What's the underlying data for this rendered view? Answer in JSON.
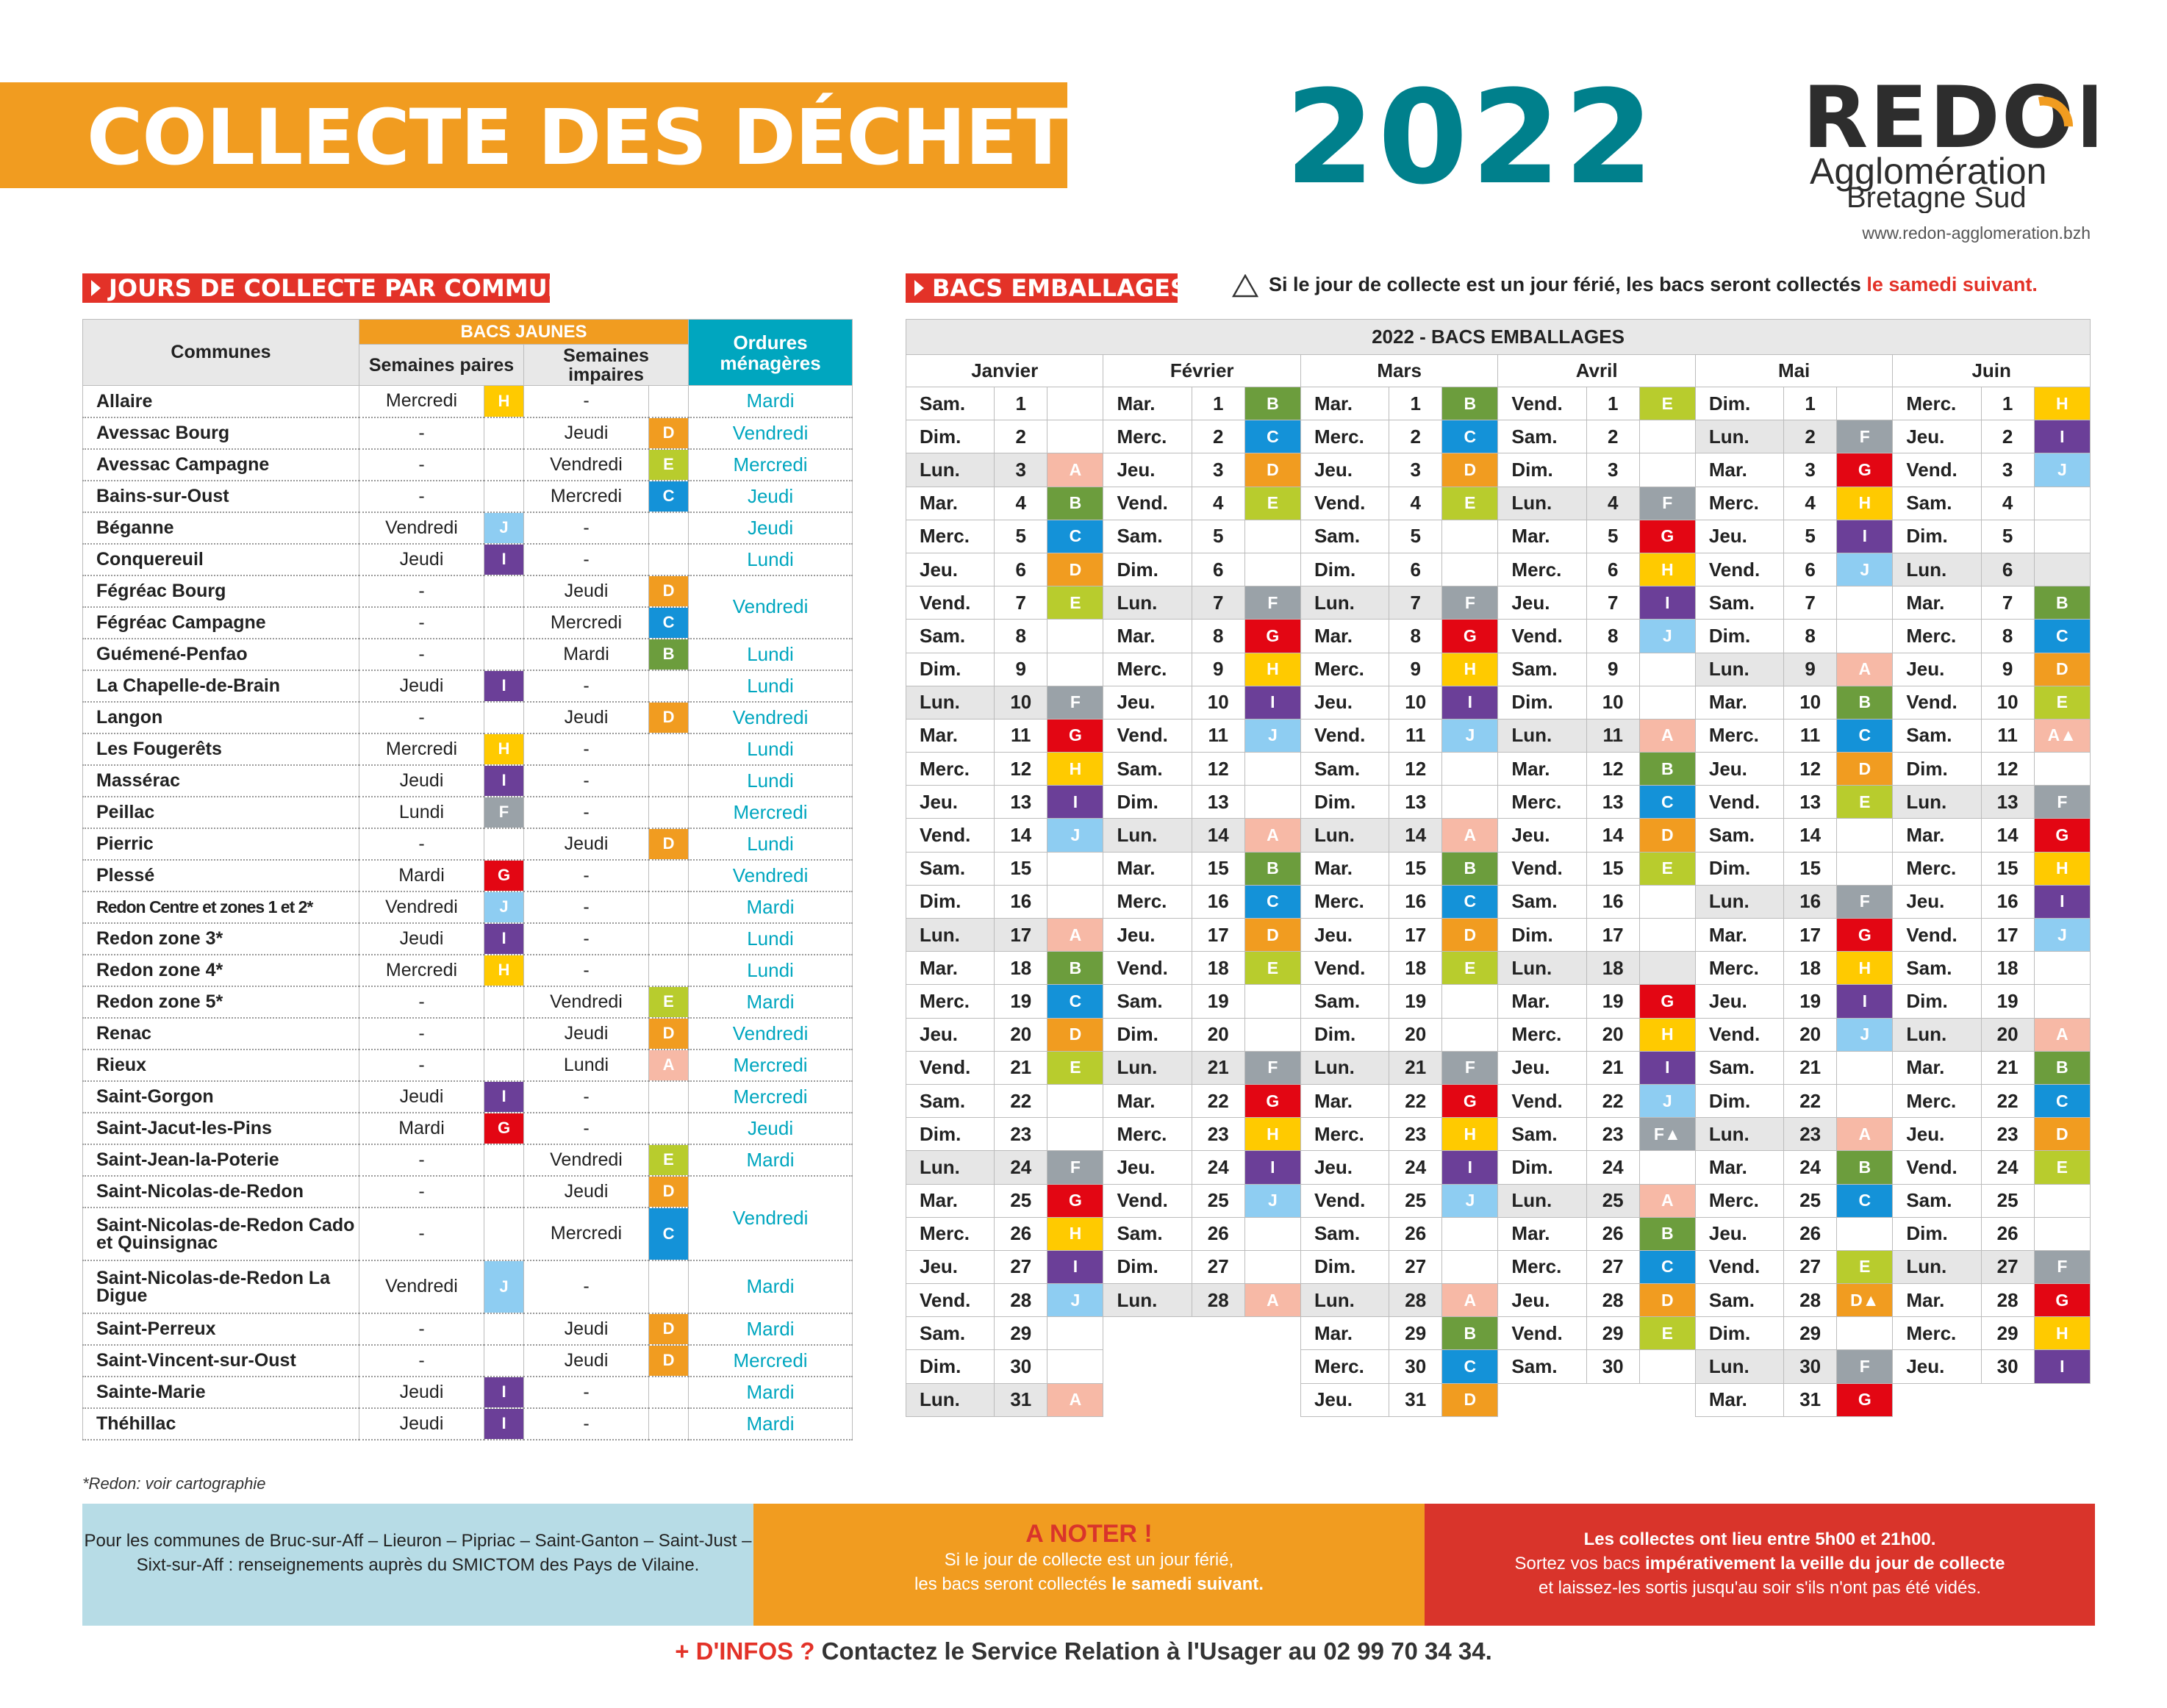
{
  "header": {
    "title": "COLLECTE DES DÉCHETS",
    "year": "2022",
    "logo_main": "REDON",
    "logo_sub1": "Agglomération",
    "logo_sub2": "Bretagne Sud",
    "website": "www.redon-agglomeration.bzh"
  },
  "sections": {
    "communes_title": "JOURS DE COLLECTE PAR COMMUNE",
    "bacs_title": "BACS EMBALLAGES"
  },
  "notice": {
    "text": "Si le jour de collecte est un jour férié, les bacs seront collectés",
    "highlight": "le samedi suivant."
  },
  "colors": {
    "A": "#f7b9a6",
    "B": "#6c9d3d",
    "C": "#1492d8",
    "D": "#f19c20",
    "E": "#b8cc2d",
    "F": "#9aa2a8",
    "G": "#e30613",
    "H": "#ffca00",
    "I": "#6b3f98",
    "J": "#8ecdf2"
  },
  "communes_table": {
    "header_communes": "Communes",
    "header_bacs_jaunes": "BACS JAUNES",
    "header_paires": "Semaines paires",
    "header_impaires": "Semaines impaires",
    "header_om": "Ordures ménagères",
    "rows": [
      {
        "name": "Allaire",
        "p": "Mercredi",
        "pl": "H",
        "i": "-",
        "il": "",
        "om": "Mardi"
      },
      {
        "name": "Avessac Bourg",
        "p": "-",
        "pl": "",
        "i": "Jeudi",
        "il": "D",
        "om": "Vendredi"
      },
      {
        "name": "Avessac Campagne",
        "p": "-",
        "pl": "",
        "i": "Vendredi",
        "il": "E",
        "om": "Mercredi"
      },
      {
        "name": "Bains-sur-Oust",
        "p": "-",
        "pl": "",
        "i": "Mercredi",
        "il": "C",
        "om": "Jeudi"
      },
      {
        "name": "Béganne",
        "p": "Vendredi",
        "pl": "J",
        "i": "-",
        "il": "",
        "om": "Jeudi"
      },
      {
        "name": "Conquereuil",
        "p": "Jeudi",
        "pl": "I",
        "i": "-",
        "il": "",
        "om": "Lundi"
      },
      {
        "name": "Fégréac Bourg",
        "p": "-",
        "pl": "",
        "i": "Jeudi",
        "il": "D",
        "om": "Vendredi",
        "omspan": 2
      },
      {
        "name": "Fégréac Campagne",
        "p": "-",
        "pl": "",
        "i": "Mercredi",
        "il": "C",
        "om": null
      },
      {
        "name": "Guémené-Penfao",
        "p": "-",
        "pl": "",
        "i": "Mardi",
        "il": "B",
        "om": "Lundi"
      },
      {
        "name": "La Chapelle-de-Brain",
        "p": "Jeudi",
        "pl": "I",
        "i": "-",
        "il": "",
        "om": "Lundi"
      },
      {
        "name": "Langon",
        "p": "-",
        "pl": "",
        "i": "Jeudi",
        "il": "D",
        "om": "Vendredi"
      },
      {
        "name": "Les Fougerêts",
        "p": "Mercredi",
        "pl": "H",
        "i": "-",
        "il": "",
        "om": "Lundi"
      },
      {
        "name": "Massérac",
        "p": "Jeudi",
        "pl": "I",
        "i": "-",
        "il": "",
        "om": "Lundi"
      },
      {
        "name": "Peillac",
        "p": "Lundi",
        "pl": "F",
        "i": "-",
        "il": "",
        "om": "Mercredi"
      },
      {
        "name": "Pierric",
        "p": "-",
        "pl": "",
        "i": "Jeudi",
        "il": "D",
        "om": "Lundi"
      },
      {
        "name": "Plessé",
        "p": "Mardi",
        "pl": "G",
        "i": "-",
        "il": "",
        "om": "Vendredi"
      },
      {
        "name": "Redon Centre et zones 1 et 2*",
        "p": "Vendredi",
        "pl": "J",
        "i": "-",
        "il": "",
        "om": "Mardi"
      },
      {
        "name": "Redon zone 3*",
        "p": "Jeudi",
        "pl": "I",
        "i": "-",
        "il": "",
        "om": "Lundi"
      },
      {
        "name": "Redon zone 4*",
        "p": "Mercredi",
        "pl": "H",
        "i": "-",
        "il": "",
        "om": "Lundi"
      },
      {
        "name": "Redon zone 5*",
        "p": "-",
        "pl": "",
        "i": "Vendredi",
        "il": "E",
        "om": "Mardi"
      },
      {
        "name": "Renac",
        "p": "-",
        "pl": "",
        "i": "Jeudi",
        "il": "D",
        "om": "Vendredi"
      },
      {
        "name": "Rieux",
        "p": "-",
        "pl": "",
        "i": "Lundi",
        "il": "A",
        "om": "Mercredi"
      },
      {
        "name": "Saint-Gorgon",
        "p": "Jeudi",
        "pl": "I",
        "i": "-",
        "il": "",
        "om": "Mercredi"
      },
      {
        "name": "Saint-Jacut-les-Pins",
        "p": "Mardi",
        "pl": "G",
        "i": "-",
        "il": "",
        "om": "Jeudi"
      },
      {
        "name": "Saint-Jean-la-Poterie",
        "p": "-",
        "pl": "",
        "i": "Vendredi",
        "il": "E",
        "om": "Mardi"
      },
      {
        "name": "Saint-Nicolas-de-Redon",
        "p": "-",
        "pl": "",
        "i": "Jeudi",
        "il": "D",
        "om": "Vendredi",
        "omspan": 2
      },
      {
        "name": "Saint-Nicolas-de-Redon Cado et Quinsignac",
        "p": "-",
        "pl": "",
        "i": "Mercredi",
        "il": "C",
        "om": null,
        "tall": true
      },
      {
        "name": "Saint-Nicolas-de-Redon La Digue",
        "p": "Vendredi",
        "pl": "J",
        "i": "-",
        "il": "",
        "om": "Mardi",
        "tall": true
      },
      {
        "name": "Saint-Perreux",
        "p": "-",
        "pl": "",
        "i": "Jeudi",
        "il": "D",
        "om": "Mardi"
      },
      {
        "name": "Saint-Vincent-sur-Oust",
        "p": "-",
        "pl": "",
        "i": "Jeudi",
        "il": "D",
        "om": "Mercredi"
      },
      {
        "name": "Sainte-Marie",
        "p": "Jeudi",
        "pl": "I",
        "i": "-",
        "il": "",
        "om": "Mardi"
      },
      {
        "name": "Théhillac",
        "p": "Jeudi",
        "pl": "I",
        "i": "-",
        "il": "",
        "om": "Mardi"
      }
    ]
  },
  "bacs_calendar": {
    "title": "2022 - BACS EMBALLAGES",
    "months": [
      {
        "name": "Janvier",
        "days": [
          "Sam.",
          "Dim.",
          "Lun.",
          "Mar.",
          "Merc.",
          "Jeu.",
          "Vend.",
          "Sam.",
          "Dim.",
          "Lun.",
          "Mar.",
          "Merc.",
          "Jeu.",
          "Vend.",
          "Sam.",
          "Dim.",
          "Lun.",
          "Mar.",
          "Merc.",
          "Jeu.",
          "Vend.",
          "Sam.",
          "Dim.",
          "Lun.",
          "Mar.",
          "Merc.",
          "Jeu.",
          "Vend.",
          "Sam.",
          "Dim.",
          "Lun."
        ],
        "letters": [
          "",
          "",
          "A",
          "B",
          "C",
          "D",
          "E",
          "",
          "",
          "F",
          "G",
          "H",
          "I",
          "J",
          "",
          "",
          "A",
          "B",
          "C",
          "D",
          "E",
          "",
          "",
          "F",
          "G",
          "H",
          "I",
          "J",
          "",
          "",
          "A"
        ]
      },
      {
        "name": "Février",
        "days": [
          "Mar.",
          "Merc.",
          "Jeu.",
          "Vend.",
          "Sam.",
          "Dim.",
          "Lun.",
          "Mar.",
          "Merc.",
          "Jeu.",
          "Vend.",
          "Sam.",
          "Dim.",
          "Lun.",
          "Mar.",
          "Merc.",
          "Jeu.",
          "Vend.",
          "Sam.",
          "Dim.",
          "Lun.",
          "Mar.",
          "Merc.",
          "Jeu.",
          "Vend.",
          "Sam.",
          "Dim.",
          "Lun."
        ],
        "letters": [
          "B",
          "C",
          "D",
          "E",
          "",
          "",
          "F",
          "G",
          "H",
          "I",
          "J",
          "",
          "",
          "A",
          "B",
          "C",
          "D",
          "E",
          "",
          "",
          "F",
          "G",
          "H",
          "I",
          "J",
          "",
          "",
          "A"
        ]
      },
      {
        "name": "Mars",
        "days": [
          "Mar.",
          "Merc.",
          "Jeu.",
          "Vend.",
          "Sam.",
          "Dim.",
          "Lun.",
          "Mar.",
          "Merc.",
          "Jeu.",
          "Vend.",
          "Sam.",
          "Dim.",
          "Lun.",
          "Mar.",
          "Merc.",
          "Jeu.",
          "Vend.",
          "Sam.",
          "Dim.",
          "Lun.",
          "Mar.",
          "Merc.",
          "Jeu.",
          "Vend.",
          "Sam.",
          "Dim.",
          "Lun.",
          "Mar.",
          "Merc.",
          "Jeu."
        ],
        "letters": [
          "B",
          "C",
          "D",
          "E",
          "",
          "",
          "F",
          "G",
          "H",
          "I",
          "J",
          "",
          "",
          "A",
          "B",
          "C",
          "D",
          "E",
          "",
          "",
          "F",
          "G",
          "H",
          "I",
          "J",
          "",
          "",
          "A",
          "B",
          "C",
          "D"
        ]
      },
      {
        "name": "Avril",
        "days": [
          "Vend.",
          "Sam.",
          "Dim.",
          "Lun.",
          "Mar.",
          "Merc.",
          "Jeu.",
          "Vend.",
          "Sam.",
          "Dim.",
          "Lun.",
          "Mar.",
          "Merc.",
          "Jeu.",
          "Vend.",
          "Sam.",
          "Dim.",
          "Lun.",
          "Mar.",
          "Merc.",
          "Jeu.",
          "Vend.",
          "Sam.",
          "Dim.",
          "Lun.",
          "Mar.",
          "Merc.",
          "Jeu.",
          "Vend.",
          "Sam."
        ],
        "letters": [
          "E",
          "",
          "",
          "F",
          "G",
          "H",
          "I",
          "J",
          "",
          "",
          "A",
          "B",
          "C",
          "D",
          "E",
          "",
          "",
          "",
          "G",
          "H",
          "I",
          "J",
          "F▲",
          "",
          "A",
          "B",
          "C",
          "D",
          "E",
          ""
        ]
      },
      {
        "name": "Mai",
        "days": [
          "Dim.",
          "Lun.",
          "Mar.",
          "Merc.",
          "Jeu.",
          "Vend.",
          "Sam.",
          "Dim.",
          "Lun.",
          "Mar.",
          "Merc.",
          "Jeu.",
          "Vend.",
          "Sam.",
          "Dim.",
          "Lun.",
          "Mar.",
          "Merc.",
          "Jeu.",
          "Vend.",
          "Sam.",
          "Dim.",
          "Lun.",
          "Mar.",
          "Merc.",
          "Jeu.",
          "Vend.",
          "Sam.",
          "Dim.",
          "Lun.",
          "Mar."
        ],
        "letters": [
          "",
          "F",
          "G",
          "H",
          "I",
          "J",
          "",
          "",
          "A",
          "B",
          "C",
          "D",
          "E",
          "",
          "",
          "F",
          "G",
          "H",
          "I",
          "J",
          "",
          "",
          "A",
          "B",
          "C",
          "",
          "E",
          "D▲",
          "",
          "F",
          "G"
        ]
      },
      {
        "name": "Juin",
        "days": [
          "Merc.",
          "Jeu.",
          "Vend.",
          "Sam.",
          "Dim.",
          "Lun.",
          "Mar.",
          "Merc.",
          "Jeu.",
          "Vend.",
          "Sam.",
          "Dim.",
          "Lun.",
          "Mar.",
          "Merc.",
          "Jeu.",
          "Vend.",
          "Sam.",
          "Dim.",
          "Lun.",
          "Mar.",
          "Merc.",
          "Jeu.",
          "Vend.",
          "Sam.",
          "Dim.",
          "Lun.",
          "Mar.",
          "Merc.",
          "Jeu."
        ],
        "letters": [
          "H",
          "I",
          "J",
          "",
          "",
          "",
          "B",
          "C",
          "D",
          "E",
          "A▲",
          "",
          "F",
          "G",
          "H",
          "I",
          "J",
          "",
          "",
          "A",
          "B",
          "C",
          "D",
          "E",
          "",
          "",
          "F",
          "G",
          "H",
          "I"
        ]
      }
    ]
  },
  "footnote": "*Redon: voir cartographie",
  "boxes": {
    "box1": "Pour les communes de Bruc-sur-Aff – Lieuron – Pipriac – Saint-Ganton – Saint-Just – Sixt-sur-Aff : renseignements auprès du SMICTOM des Pays de Vilaine.",
    "box2_title": "A NOTER !",
    "box2_line1": "Si le jour de collecte est un jour férié,",
    "box2_line2": "les bacs seront collectés",
    "box2_bold": "le samedi suivant.",
    "box3_line1": "Les collectes ont lieu entre 5h00 et 21h00.",
    "box3_line2a": "Sortez vos bacs",
    "box3_bold": "impérativement la veille du jour de collecte",
    "box3_line3": "et laissez-les sortis jusqu'au soir s'ils n'ont pas été vidés."
  },
  "contact": {
    "plus": "+ D'INFOS ?",
    "text": "Contactez le Service Relation à l'Usager au 02 99 70 34 34."
  }
}
